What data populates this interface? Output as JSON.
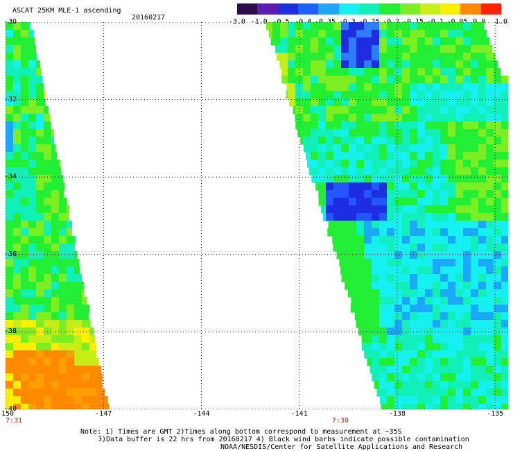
{
  "header": {
    "title": "ASCAT 25KM MLE-1 ascending",
    "date": "20160217"
  },
  "colorbar": {
    "labels": [
      "-3.0",
      "-1.0",
      "-0.5",
      "-0.4",
      "-0.35",
      "-0.3",
      "-0.25",
      "-0.2",
      "-0.15",
      "-0.1",
      "-0.05",
      "0.0",
      "1.0"
    ],
    "colors": [
      "#2c0f4a",
      "#5c1eb0",
      "#1c2ee0",
      "#1f5fff",
      "#1ca7ff",
      "#15f0f0",
      "#10f0b8",
      "#22ee33",
      "#7cee22",
      "#c6ee15",
      "#ffee00",
      "#ff8a00",
      "#ff2200"
    ]
  },
  "axes": {
    "x_ticks": [
      "-150",
      "-147",
      "-144",
      "-141",
      "-138",
      "-135"
    ],
    "y_ticks": [
      "-30",
      "-32",
      "-34",
      "-36",
      "-38",
      "-40"
    ],
    "x_range": [
      -150,
      -134.6
    ],
    "y_range": [
      -30,
      -40
    ]
  },
  "time_labels": [
    {
      "text": "7:31",
      "lon": -150
    },
    {
      "text": "7:30",
      "lon": -140
    }
  ],
  "notes": {
    "line1": "Note: 1) Times are GMT 2)Times along bottom correspond to measurement at ~35S",
    "line2": "3)Data buffer is 22 hrs from 20160217 4) Black wind barbs indicate possible contamination",
    "line3": "NOAA/NESDIS/Center for Satellite Applications and Research"
  }
}
